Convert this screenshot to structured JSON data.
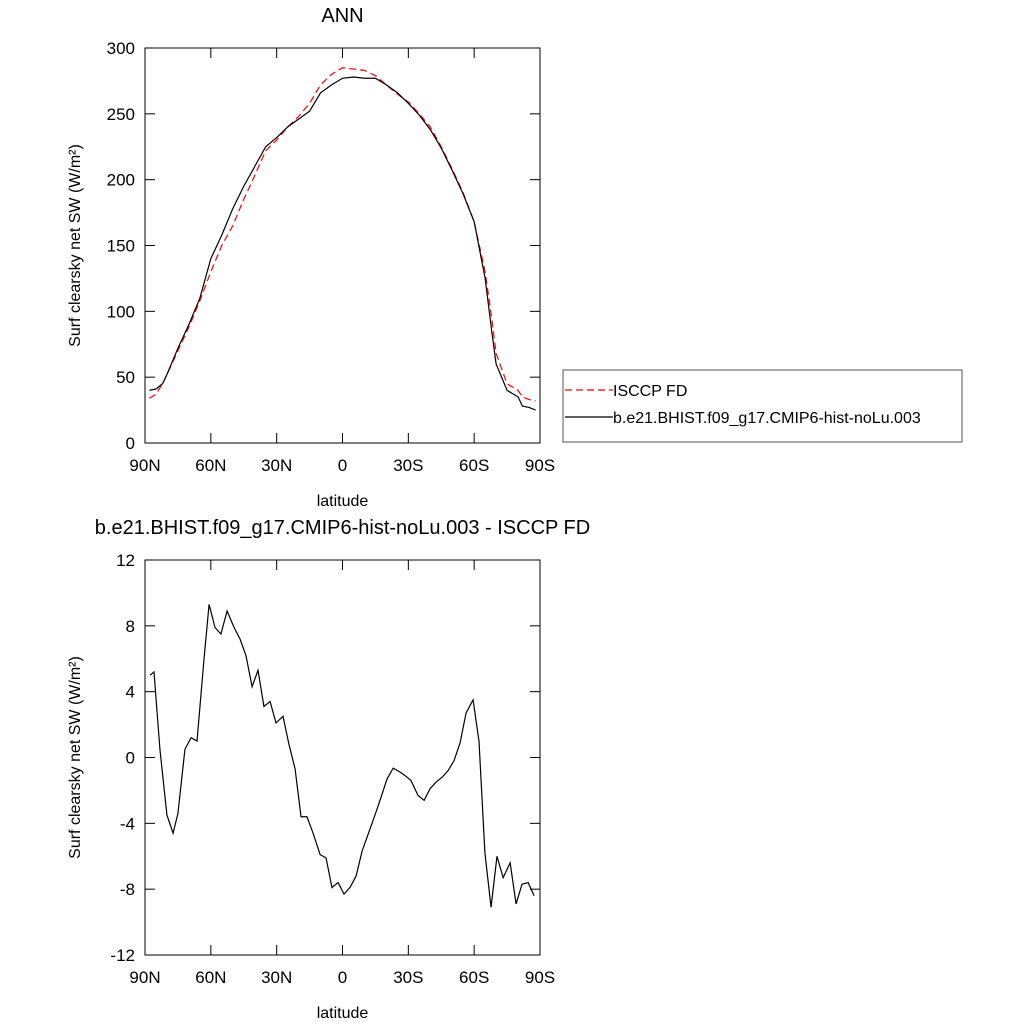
{
  "chart_data": [
    {
      "type": "line",
      "title": "ANN",
      "xlabel": "latitude",
      "ylabel": "Surf clearsky net SW (W/m²)",
      "x": [
        88,
        85,
        82,
        80,
        75,
        70,
        65,
        60,
        55,
        50,
        45,
        40,
        35,
        30,
        25,
        20,
        15,
        10,
        5,
        0,
        -5,
        -10,
        -15,
        -20,
        -25,
        -30,
        -35,
        -40,
        -45,
        -50,
        -55,
        -60,
        -65,
        -68,
        -70,
        -75,
        -80,
        -82,
        -85,
        -88
      ],
      "series": [
        {
          "name": "ISCCP FD",
          "color": "#ff0000",
          "style": "dashed",
          "values": [
            34,
            37,
            45,
            52,
            70,
            88,
            108,
            130,
            150,
            165,
            185,
            203,
            222,
            230,
            240,
            248,
            258,
            272,
            280,
            285,
            284,
            283,
            279,
            272,
            265,
            259,
            250,
            240,
            225,
            208,
            190,
            168,
            130,
            95,
            68,
            45,
            40,
            35,
            33,
            32
          ]
        },
        {
          "name": "b.e21.BHIST.f09_g17.CMIP6-hist-noLu.003",
          "color": "#000000",
          "style": "solid",
          "values": [
            40,
            41,
            45,
            52,
            72,
            90,
            110,
            140,
            158,
            178,
            195,
            210,
            225,
            232,
            240,
            246,
            252,
            266,
            272,
            277,
            278,
            277,
            277,
            272,
            266,
            258,
            249,
            238,
            224,
            207,
            189,
            168,
            125,
            85,
            60,
            40,
            35,
            28,
            27,
            25
          ]
        }
      ],
      "xlim": [
        90,
        -90
      ],
      "ylim": [
        0,
        300
      ],
      "xticks": [
        {
          "value": 90,
          "label": "90N"
        },
        {
          "value": 60,
          "label": "60N"
        },
        {
          "value": 30,
          "label": "30N"
        },
        0,
        {
          "value": -30,
          "label": "30S"
        },
        {
          "value": -60,
          "label": "60S"
        },
        {
          "value": -90,
          "label": "90S"
        }
      ],
      "yticks": [
        0,
        50,
        100,
        150,
        200,
        250,
        300
      ],
      "legend": "right"
    },
    {
      "type": "line",
      "title": "b.e21.BHIST.f09_g17.CMIP6-hist-noLu.003 - ISCCP FD",
      "xlabel": "latitude",
      "ylabel": "Surf clearsky net SW (W/m²)",
      "x": [
        87.7,
        85.9,
        83.2,
        80,
        77.2,
        75,
        71.8,
        69,
        66.3,
        63.1,
        60.8,
        58.1,
        55.4,
        52.6,
        49.4,
        46.7,
        44,
        41.2,
        38.5,
        35.8,
        33,
        30.3,
        27.1,
        24.4,
        21.6,
        18.9,
        16.2,
        13.4,
        10.2,
        7.5,
        4.8,
        2,
        -0.7,
        -3.4,
        -6.2,
        -8.9,
        -12.1,
        -14.8,
        -17.6,
        -20.3,
        -23.1,
        -25.8,
        -28.5,
        -31.2,
        -34.4,
        -37.2,
        -39.9,
        -42.6,
        -45.4,
        -48.1,
        -50.8,
        -53.6,
        -56.3,
        -59.5,
        -62.2,
        -64.9,
        -67.7,
        -70.4,
        -73.2,
        -76.4,
        -79.1,
        -81.8,
        -84.6,
        -87.3
      ],
      "series": [
        {
          "color": "#000000",
          "style": "solid",
          "values": [
            5,
            5.2,
            0.5,
            -3.5,
            -4.6,
            -3.4,
            0.5,
            1.2,
            1,
            6,
            9.3,
            7.9,
            7.5,
            8.9,
            7.9,
            7.2,
            6.2,
            4.3,
            5.3,
            3.1,
            3.4,
            2.1,
            2.5,
            0.8,
            -0.7,
            -3.6,
            -3.6,
            -4.6,
            -5.9,
            -6.1,
            -7.9,
            -7.6,
            -8.3,
            -7.9,
            -7.2,
            -5.7,
            -4.5,
            -3.5,
            -2.4,
            -1.3,
            -0.65,
            -0.85,
            -1.1,
            -1.4,
            -2.3,
            -2.6,
            -1.9,
            -1.5,
            -1.2,
            -0.8,
            -0.2,
            0.9,
            2.7,
            3.5,
            1,
            -5.8,
            -9.1,
            -6,
            -7.3,
            -6.4,
            -8.9,
            -7.7,
            -7.6,
            -8.4
          ]
        }
      ],
      "xlim": [
        90,
        -90
      ],
      "ylim": [
        -12,
        12
      ],
      "xticks": [
        {
          "value": 90,
          "label": "90N"
        },
        {
          "value": 60,
          "label": "60N"
        },
        {
          "value": 30,
          "label": "30N"
        },
        0,
        {
          "value": -30,
          "label": "30S"
        },
        {
          "value": -60,
          "label": "60S"
        },
        {
          "value": -90,
          "label": "90S"
        }
      ],
      "yticks": [
        -12,
        -8,
        -4,
        0,
        4,
        8,
        12
      ]
    }
  ]
}
